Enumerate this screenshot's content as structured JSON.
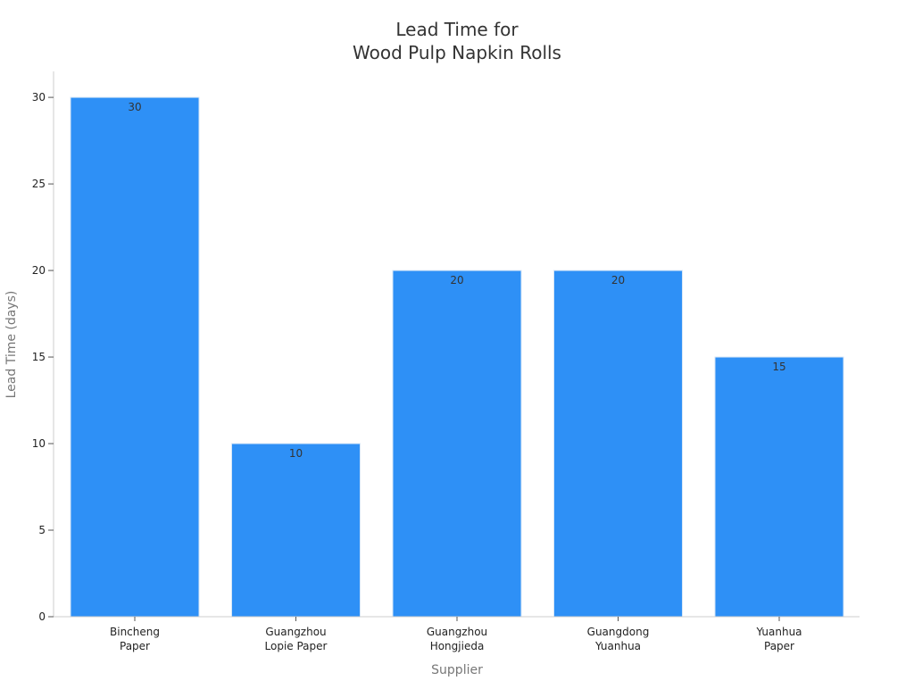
{
  "chart_data": {
    "type": "bar",
    "title_lines": [
      "Lead Time for",
      "Wood Pulp Napkin Rolls"
    ],
    "xlabel": "Supplier",
    "ylabel": "Lead Time (days)",
    "ylim": [
      0,
      31.5
    ],
    "yticks": [
      "0",
      "5",
      "10",
      "15",
      "20",
      "25",
      "30"
    ],
    "ytick_values": [
      0,
      5,
      10,
      15,
      20,
      25,
      30
    ],
    "categories": [
      [
        "Bincheng",
        "Paper"
      ],
      [
        "Guangzhou",
        "Lopie Paper"
      ],
      [
        "Guangzhou",
        "Hongjieda"
      ],
      [
        "Guangdong",
        "Yuanhua"
      ],
      [
        "Yuanhua",
        "Paper"
      ]
    ],
    "values": [
      30,
      10,
      20,
      20,
      15
    ],
    "data_labels": [
      "30",
      "10",
      "20",
      "20",
      "15"
    ],
    "grid": false,
    "legend": "none",
    "colors": {
      "bar": "#2E90F6",
      "bar_edge": "#d6e6f7",
      "axis": "#cccccc",
      "title": "#333333",
      "tick_label": "#222222",
      "axis_label": "#777777",
      "data_label": "#333333"
    }
  }
}
